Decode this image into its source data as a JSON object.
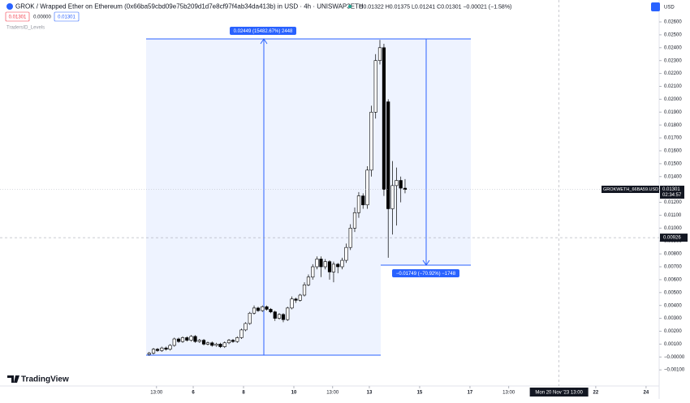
{
  "chart_data": {
    "type": "candlestick",
    "title": "GROK / Wrapped Ether on Ethereum (0x66ba59cbd09e75b209d1d7e8cf97f4ab34da413b) in USD · 4h · UNISWAP3ETH",
    "ohlc_text": "O0.01322 H0.01375 L0.01241 C0.01301 −0.00021 (−1.58%)",
    "quote_boxes": [
      "0.01301",
      "0.00000",
      "0.01301"
    ],
    "indicator": "TradersID_Levels",
    "currency": "USD",
    "logo": "TradingView",
    "measures": [
      {
        "label": "0.02449 (15482.67%) 2448"
      },
      {
        "label": "−0.01749 (−70.92%) −1748"
      }
    ],
    "price_label": {
      "name": "GROKWETH_66BA59.USD",
      "value": 0.01301,
      "countdown": "02:34:57"
    },
    "crosshair": {
      "x": {
        "value": 20.54,
        "label": "Mon 20 Nov '23  13:00"
      },
      "y": 0.00926
    },
    "x": [
      4.25,
      4.42,
      4.58,
      4.75,
      4.92,
      5.08,
      5.25,
      5.42,
      5.58,
      5.75,
      5.92,
      6.08,
      6.25,
      6.42,
      6.58,
      6.75,
      6.92,
      7.08,
      7.25,
      7.42,
      7.58,
      7.75,
      7.92,
      8.08,
      8.25,
      8.42,
      8.58,
      8.75,
      8.92,
      9.08,
      9.25,
      9.42,
      9.58,
      9.75,
      9.92,
      10.08,
      10.25,
      10.42,
      10.58,
      10.75,
      10.92,
      11.08,
      11.25,
      11.42,
      11.58,
      11.75,
      11.92,
      12.08,
      12.25,
      12.42,
      12.58,
      12.75,
      12.92,
      13.08,
      13.25,
      13.42,
      13.58,
      13.75,
      13.92,
      14.08,
      14.25,
      14.42
    ],
    "open": [
      0.0002,
      0.0003,
      0.0006,
      0.0005,
      0.0007,
      0.0006,
      0.0009,
      0.0014,
      0.0012,
      0.0015,
      0.0013,
      0.0016,
      0.0012,
      0.0013,
      0.001,
      0.0011,
      0.0009,
      0.001,
      0.0008,
      0.0011,
      0.0013,
      0.0012,
      0.0015,
      0.0021,
      0.0026,
      0.0034,
      0.0038,
      0.0036,
      0.0039,
      0.0037,
      0.0035,
      0.003,
      0.0033,
      0.0029,
      0.0038,
      0.0045,
      0.0044,
      0.0048,
      0.0056,
      0.0062,
      0.007,
      0.0076,
      0.007,
      0.0074,
      0.0066,
      0.0072,
      0.007,
      0.0075,
      0.0085,
      0.01,
      0.0112,
      0.0125,
      0.0118,
      0.0145,
      0.019,
      0.023,
      0.024,
      0.0198,
      0.0115,
      0.0133,
      0.0137,
      0.0131
    ],
    "high": [
      0.0004,
      0.0007,
      0.0007,
      0.0008,
      0.0008,
      0.001,
      0.0015,
      0.0015,
      0.0016,
      0.0016,
      0.0017,
      0.0017,
      0.0014,
      0.0014,
      0.0012,
      0.0012,
      0.0011,
      0.0011,
      0.0012,
      0.0014,
      0.0014,
      0.0016,
      0.0022,
      0.0027,
      0.0035,
      0.004,
      0.0039,
      0.004,
      0.004,
      0.0038,
      0.0036,
      0.0034,
      0.0034,
      0.0039,
      0.0047,
      0.0046,
      0.0049,
      0.0058,
      0.0064,
      0.0072,
      0.0078,
      0.0078,
      0.0076,
      0.0075,
      0.0074,
      0.0073,
      0.0077,
      0.0088,
      0.0103,
      0.0116,
      0.0128,
      0.0127,
      0.0148,
      0.0195,
      0.0235,
      0.0246,
      0.0243,
      0.02,
      0.0152,
      0.0147,
      0.014,
      0.0138
    ],
    "low": [
      0.0001,
      0.0002,
      0.0004,
      0.0004,
      0.0005,
      0.0005,
      0.0008,
      0.0011,
      0.0011,
      0.0012,
      0.0012,
      0.0011,
      0.0011,
      0.0009,
      0.0009,
      0.0008,
      0.0008,
      0.0007,
      0.0007,
      0.001,
      0.0011,
      0.0011,
      0.0014,
      0.002,
      0.0025,
      0.0033,
      0.0035,
      0.0035,
      0.0036,
      0.0034,
      0.0028,
      0.0029,
      0.0027,
      0.0028,
      0.0037,
      0.0042,
      0.0043,
      0.0047,
      0.0055,
      0.006,
      0.0068,
      0.0062,
      0.0068,
      0.006,
      0.0058,
      0.0065,
      0.0068,
      0.0073,
      0.0083,
      0.0097,
      0.0108,
      0.0115,
      0.0115,
      0.014,
      0.0185,
      0.0227,
      0.0125,
      0.0077,
      0.0095,
      0.0102,
      0.012,
      0.0127
    ],
    "close": [
      0.0003,
      0.0006,
      0.0005,
      0.0007,
      0.0006,
      0.0009,
      0.0014,
      0.0012,
      0.0015,
      0.0013,
      0.0016,
      0.0012,
      0.0013,
      0.001,
      0.0011,
      0.0009,
      0.001,
      0.0008,
      0.0011,
      0.0013,
      0.0012,
      0.0015,
      0.0021,
      0.0026,
      0.0034,
      0.0038,
      0.0036,
      0.0039,
      0.0037,
      0.0035,
      0.003,
      0.0033,
      0.0029,
      0.0038,
      0.0045,
      0.0044,
      0.0048,
      0.0056,
      0.0062,
      0.007,
      0.0076,
      0.007,
      0.0074,
      0.0066,
      0.0072,
      0.007,
      0.0075,
      0.0085,
      0.01,
      0.0112,
      0.0125,
      0.0118,
      0.0145,
      0.019,
      0.023,
      0.024,
      0.013,
      0.0115,
      0.0133,
      0.0137,
      0.0131,
      0.013
    ],
    "up_color": "#ffffff",
    "down_color": "#000000",
    "xlim": [
      -1.68,
      24.52
    ],
    "xticks": [
      {
        "value": 4.54,
        "label": "13:00"
      },
      6,
      8,
      10,
      {
        "value": 11.54,
        "label": "13:00"
      },
      13,
      15,
      17,
      {
        "value": 18.54,
        "label": "13:00"
      },
      22,
      24
    ],
    "ylim": [
      -0.0025,
      0.0277
    ],
    "yticks": [
      {
        "value": -0.002,
        "label": "−0.00200"
      },
      {
        "value": -0.001,
        "label": "−0.00100"
      },
      {
        "value": 0,
        "label": "−0.00000"
      },
      {
        "value": 0.001,
        "label": "0.00100"
      },
      {
        "value": 0.002,
        "label": "0.00200"
      },
      {
        "value": 0.003,
        "label": "0.00300"
      },
      {
        "value": 0.004,
        "label": "0.00400"
      },
      {
        "value": 0.005,
        "label": "0.00500"
      },
      {
        "value": 0.006,
        "label": "0.00600"
      },
      {
        "value": 0.007,
        "label": "0.00700"
      },
      {
        "value": 0.008,
        "label": "0.00800"
      },
      {
        "value": 0.009,
        "label": "0.00900"
      },
      {
        "value": 0.01,
        "label": "0.01000"
      },
      {
        "value": 0.011,
        "label": "0.01100"
      },
      {
        "value": 0.012,
        "label": "0.01200"
      },
      {
        "value": 0.013,
        "label": "0.01300"
      },
      {
        "value": 0.014,
        "label": "0.01400"
      },
      {
        "value": 0.015,
        "label": "0.01500"
      },
      {
        "value": 0.016,
        "label": "0.01600"
      },
      {
        "value": 0.017,
        "label": "0.01700"
      },
      {
        "value": 0.018,
        "label": "0.01800"
      },
      {
        "value": 0.019,
        "label": "0.01900"
      },
      {
        "value": 0.02,
        "label": "0.02000"
      },
      {
        "value": 0.021,
        "label": "0.02100"
      },
      {
        "value": 0.022,
        "label": "0.02200"
      },
      {
        "value": 0.023,
        "label": "0.02300"
      },
      {
        "value": 0.024,
        "label": "0.02400"
      },
      {
        "value": 0.025,
        "label": "0.02500"
      },
      {
        "value": 0.026,
        "label": "0.02600"
      }
    ]
  }
}
